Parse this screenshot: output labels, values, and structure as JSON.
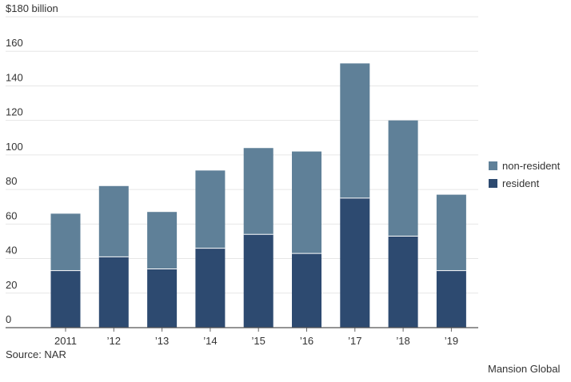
{
  "chart_data": {
    "type": "bar",
    "stacked": true,
    "categories": [
      "2011",
      "’12",
      "’13",
      "’14",
      "’15",
      "’16",
      "’17",
      "’18",
      "’19"
    ],
    "series": [
      {
        "name": "resident",
        "color": "#2d4a70",
        "values": [
          33,
          41,
          34,
          46,
          54,
          43,
          75,
          53,
          33
        ]
      },
      {
        "name": "non-resident",
        "color": "#5f8098",
        "values": [
          33,
          41,
          33,
          45,
          50,
          59,
          78,
          67,
          44
        ]
      }
    ],
    "yticks": [
      "0",
      "20",
      "40",
      "60",
      "80",
      "100",
      "120",
      "140",
      "160",
      "$180 billion"
    ],
    "ylim": [
      0,
      180
    ],
    "grid": true,
    "legend_position": "right",
    "legend": [
      "non-resident",
      "resident"
    ],
    "source": "Source: NAR",
    "credit": "Mansion Global"
  }
}
